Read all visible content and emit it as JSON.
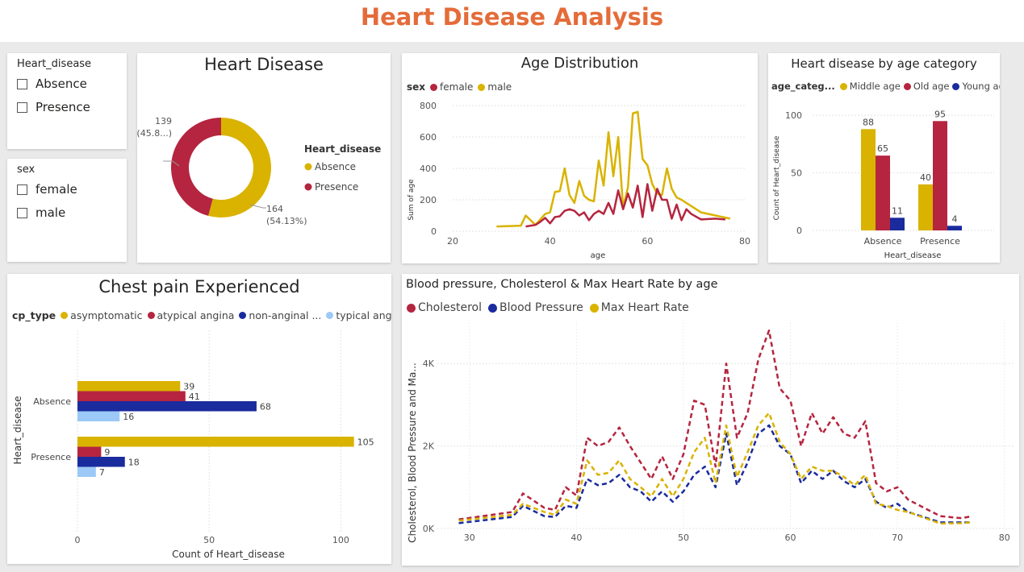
{
  "page": {
    "title": "Heart Disease Analysis"
  },
  "colors": {
    "gold": "#d9b300",
    "red": "#b5253f",
    "navy": "#1a2b9e",
    "lightblue": "#9cc9f7",
    "title": "#e46c3a"
  },
  "slicer_heart": {
    "title": "Heart_disease",
    "items": [
      "Absence",
      "Presence"
    ]
  },
  "slicer_sex": {
    "title": "sex",
    "items": [
      "female",
      "male"
    ]
  },
  "donut": {
    "title": "Heart Disease",
    "legend_title": "Heart_disease",
    "legend": [
      "Absence",
      "Presence"
    ],
    "label_presence": [
      "139",
      "(45.8...)"
    ],
    "label_absence": [
      "164",
      "(54.13%)"
    ]
  },
  "age_dist": {
    "title": "Age Distribution",
    "legend_title": "sex",
    "legend": [
      "female",
      "male"
    ],
    "xlabel": "age",
    "ylabel": "Sum of age",
    "xticks": [
      "20",
      "40",
      "60",
      "80"
    ],
    "yticks": [
      "0",
      "200",
      "400",
      "600",
      "800"
    ]
  },
  "age_cat": {
    "title": "Heart disease by age category",
    "legend_title": "age_categ...",
    "legend": [
      "Middle age",
      "Old age",
      "Young age"
    ],
    "xlabel": "Heart_disease",
    "ylabel": "Count of Heart_disease",
    "yticks": [
      "0",
      "50",
      "100"
    ]
  },
  "chest": {
    "title": "Chest pain Experienced",
    "legend_title": "cp_type",
    "legend": [
      "asymptomatic",
      "atypical angina",
      "non-anginal ...",
      "typical angi..."
    ],
    "xlabel": "Count of Heart_disease",
    "ylabel": "Heart_disease",
    "xticks": [
      "0",
      "50",
      "100"
    ]
  },
  "bp": {
    "title": "Blood pressure, Cholesterol & Max Heart Rate by age",
    "legend": [
      "Cholesterol",
      "Blood Pressure",
      "Max Heart Rate"
    ],
    "ylabel": "Cholesterol, Blood Pressure and Ma...",
    "yticks": [
      "0K",
      "2K",
      "4K"
    ],
    "xticks": [
      "30",
      "40",
      "50",
      "60",
      "70",
      "80"
    ]
  },
  "chart_data": [
    {
      "type": "pie",
      "title": "Heart Disease",
      "categories": [
        "Absence",
        "Presence"
      ],
      "values": [
        164,
        139
      ],
      "percent_labels": [
        "54.13%",
        "45.8..."
      ],
      "donut": true
    },
    {
      "type": "line",
      "title": "Age Distribution",
      "xlabel": "age",
      "ylabel": "Sum of age",
      "xlim": [
        20,
        80
      ],
      "ylim": [
        0,
        800
      ],
      "series": [
        {
          "name": "male",
          "x": [
            29,
            34,
            35,
            37,
            38,
            39,
            40,
            41,
            42,
            43,
            44,
            45,
            46,
            47,
            48,
            49,
            50,
            51,
            52,
            53,
            54,
            55,
            56,
            57,
            58,
            59,
            60,
            61,
            62,
            63,
            64,
            65,
            66,
            67,
            68,
            69,
            70,
            71,
            77
          ],
          "y": [
            30,
            35,
            100,
            40,
            75,
            110,
            120,
            250,
            255,
            400,
            230,
            180,
            320,
            225,
            200,
            190,
            450,
            290,
            630,
            350,
            600,
            150,
            280,
            750,
            760,
            460,
            420,
            300,
            240,
            230,
            400,
            270,
            215,
            200,
            180,
            160,
            140,
            120,
            80
          ]
        },
        {
          "name": "female",
          "x": [
            35,
            37,
            38,
            39,
            40,
            41,
            42,
            43,
            44,
            45,
            46,
            47,
            48,
            49,
            50,
            51,
            52,
            53,
            54,
            55,
            56,
            57,
            58,
            59,
            60,
            61,
            62,
            63,
            64,
            65,
            66,
            67,
            68,
            69,
            71,
            74,
            76
          ],
          "y": [
            30,
            40,
            60,
            85,
            50,
            90,
            95,
            130,
            140,
            130,
            100,
            120,
            70,
            110,
            130,
            110,
            180,
            110,
            260,
            140,
            240,
            150,
            290,
            90,
            300,
            130,
            270,
            200,
            200,
            80,
            170,
            70,
            140,
            110,
            75,
            80,
            75
          ]
        }
      ]
    },
    {
      "type": "bar",
      "title": "Heart disease by age category",
      "categories": [
        "Absence",
        "Presence"
      ],
      "xlabel": "Heart_disease",
      "ylabel": "Count of Heart_disease",
      "ylim": [
        0,
        105
      ],
      "series": [
        {
          "name": "Middle age",
          "values": [
            88,
            40
          ]
        },
        {
          "name": "Old age",
          "values": [
            65,
            95
          ]
        },
        {
          "name": "Young age",
          "values": [
            11,
            4
          ]
        }
      ]
    },
    {
      "type": "bar",
      "orientation": "horizontal",
      "title": "Chest pain Experienced",
      "categories": [
        "Absence",
        "Presence"
      ],
      "xlabel": "Count of Heart_disease",
      "ylabel": "Heart_disease",
      "xlim": [
        0,
        110
      ],
      "series": [
        {
          "name": "asymptomatic",
          "values": [
            39,
            105
          ]
        },
        {
          "name": "atypical angina",
          "values": [
            41,
            9
          ]
        },
        {
          "name": "non-anginal ...",
          "values": [
            68,
            18
          ]
        },
        {
          "name": "typical angi...",
          "values": [
            16,
            7
          ]
        }
      ]
    },
    {
      "type": "line",
      "title": "Blood pressure, Cholesterol & Max Heart Rate by age",
      "ylabel": "Cholesterol, Blood Pressure and Ma...",
      "xlim": [
        27,
        81
      ],
      "ylim": [
        0,
        5000
      ],
      "line_style": "dashed",
      "series": [
        {
          "name": "Cholesterol",
          "x": [
            29,
            34,
            35,
            37,
            38,
            39,
            40,
            41,
            42,
            43,
            44,
            45,
            46,
            47,
            48,
            49,
            50,
            51,
            52,
            53,
            54,
            55,
            56,
            57,
            58,
            59,
            60,
            61,
            62,
            63,
            64,
            65,
            66,
            67,
            68,
            69,
            70,
            71,
            74,
            76,
            77
          ],
          "y": [
            220,
            400,
            850,
            500,
            450,
            1000,
            800,
            2200,
            2000,
            2100,
            2450,
            2000,
            1600,
            1200,
            1750,
            1200,
            1800,
            3100,
            3000,
            1500,
            4000,
            2200,
            2800,
            4100,
            4800,
            3400,
            3100,
            2000,
            2800,
            2300,
            2700,
            2300,
            2200,
            2600,
            1100,
            900,
            1000,
            700,
            300,
            250,
            300
          ]
        },
        {
          "name": "Blood Pressure",
          "x": [
            29,
            34,
            35,
            37,
            38,
            39,
            40,
            41,
            42,
            43,
            44,
            45,
            46,
            47,
            48,
            49,
            50,
            51,
            52,
            53,
            54,
            55,
            56,
            57,
            58,
            59,
            60,
            61,
            62,
            63,
            64,
            65,
            66,
            67,
            68,
            69,
            70,
            71,
            74,
            76,
            77
          ],
          "y": [
            130,
            280,
            550,
            300,
            280,
            550,
            500,
            1200,
            1050,
            1100,
            1300,
            1000,
            900,
            650,
            900,
            650,
            900,
            1300,
            1500,
            1000,
            2300,
            1050,
            1600,
            2300,
            2500,
            2000,
            1800,
            1100,
            1400,
            1200,
            1400,
            1150,
            1000,
            1200,
            650,
            500,
            600,
            400,
            150,
            150,
            150
          ]
        },
        {
          "name": "Max Heart Rate",
          "x": [
            29,
            34,
            35,
            37,
            38,
            39,
            40,
            41,
            42,
            43,
            44,
            45,
            46,
            47,
            48,
            49,
            50,
            51,
            52,
            53,
            54,
            55,
            56,
            57,
            58,
            59,
            60,
            61,
            62,
            63,
            64,
            65,
            66,
            67,
            68,
            69,
            70,
            71,
            74,
            76,
            77
          ],
          "y": [
            190,
            330,
            600,
            400,
            330,
            700,
            600,
            1650,
            1300,
            1350,
            1650,
            1200,
            1000,
            780,
            1200,
            780,
            1200,
            1850,
            2200,
            1100,
            2500,
            1250,
            1850,
            2500,
            2800,
            2100,
            1800,
            1200,
            1500,
            1400,
            1400,
            1250,
            1050,
            1300,
            600,
            550,
            450,
            400,
            120,
            130,
            150
          ]
        }
      ]
    }
  ]
}
